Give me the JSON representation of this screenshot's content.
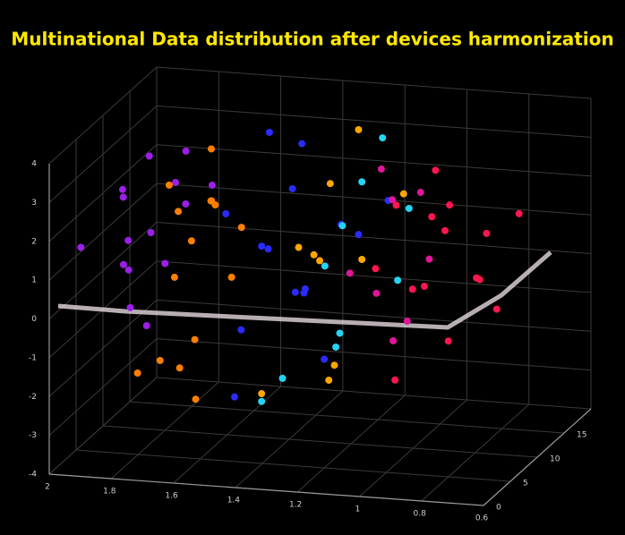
{
  "chart_data": {
    "type": "scatter3d",
    "title": "Multinational Data distribution after devices harmonization",
    "xlim": [
      2,
      0.6
    ],
    "ylim": [
      0,
      20
    ],
    "zlim": [
      -4,
      4
    ],
    "xticks": [
      2,
      1.8,
      1.6,
      1.4,
      1.2,
      1,
      0.8,
      0.6
    ],
    "yticks": [
      0,
      5,
      10,
      15
    ],
    "zticks": [
      -4,
      -3,
      -2,
      -1,
      0,
      1,
      2,
      3,
      4
    ],
    "grid": true,
    "series": [
      {
        "color": "#9b1fe8",
        "x": [
          1.95,
          1.9,
          1.88,
          1.85,
          1.82,
          1.8,
          1.78,
          1.92,
          1.86,
          1.75,
          1.83,
          1.9,
          1.7,
          1.79,
          1.87
        ],
        "y": [
          3,
          8,
          12,
          5,
          15,
          10,
          2,
          14,
          7,
          11,
          4,
          9,
          13,
          6,
          16
        ],
        "z": [
          1.5,
          2.2,
          0.8,
          2.8,
          1.2,
          0.3,
          1.9,
          2.5,
          -0.5,
          3.1,
          1.0,
          0.2,
          2.0,
          -0.8,
          1.6
        ]
      },
      {
        "color": "#ff7f00",
        "x": [
          1.75,
          1.7,
          1.65,
          1.6,
          1.72,
          1.68,
          1.62,
          1.58,
          1.74,
          1.66,
          1.7,
          1.64,
          1.6,
          1.77,
          1.69
        ],
        "y": [
          2,
          6,
          10,
          4,
          14,
          8,
          12,
          3,
          9,
          1,
          5,
          15,
          7,
          11,
          13
        ],
        "z": [
          -1.5,
          0.5,
          2.0,
          -0.8,
          2.8,
          1.2,
          -0.2,
          -2.2,
          1.8,
          -1.0,
          3.0,
          0.7,
          2.4,
          -2.5,
          1.5
        ]
      },
      {
        "color": "#2b2bff",
        "x": [
          1.5,
          1.45,
          1.4,
          1.35,
          1.3,
          1.55,
          1.25,
          1.2,
          1.48,
          1.38,
          1.15,
          1.42,
          1.32,
          1.28,
          1.52
        ],
        "y": [
          4,
          9,
          13,
          2,
          7,
          15,
          11,
          5,
          17,
          10,
          14,
          1,
          6,
          16,
          8
        ],
        "z": [
          2.5,
          1.0,
          -0.5,
          2.0,
          0.2,
          3.2,
          1.5,
          -1.2,
          2.7,
          -0.2,
          1.8,
          -1.8,
          3.0,
          0.6,
          -1.0
        ]
      },
      {
        "color": "#25d4f5",
        "x": [
          1.3,
          1.25,
          1.2,
          1.15,
          1.1,
          1.35,
          1.05,
          1.22,
          1.18,
          1.28
        ],
        "y": [
          3,
          8,
          12,
          5,
          15,
          2,
          10,
          17,
          6,
          13
        ],
        "z": [
          -1.5,
          0.8,
          2.5,
          -0.5,
          1.5,
          -2.0,
          0.3,
          3.0,
          -1.0,
          1.2
        ]
      },
      {
        "color": "#ffa600",
        "x": [
          1.35,
          1.3,
          1.25,
          1.2,
          1.15,
          1.1,
          1.28,
          1.22,
          1.32,
          1.18
        ],
        "y": [
          2,
          6,
          9,
          12,
          4,
          14,
          16,
          7,
          10,
          3
        ],
        "z": [
          -1.8,
          1.5,
          2.8,
          0.5,
          -1.2,
          2.0,
          3.3,
          -2.0,
          0.8,
          1.6
        ]
      },
      {
        "color": "#ff1650",
        "x": [
          1.0,
          0.95,
          0.9,
          0.85,
          0.8,
          0.98,
          0.92,
          0.88,
          0.82,
          0.78,
          1.02,
          0.9,
          0.86,
          0.94,
          0.8
        ],
        "y": [
          3,
          7,
          11,
          15,
          5,
          13,
          2,
          9,
          12,
          17,
          8,
          16,
          4,
          10,
          14
        ],
        "z": [
          1.5,
          0.5,
          2.2,
          1.0,
          -0.5,
          2.8,
          -1.2,
          1.8,
          0.2,
          1.3,
          2.5,
          -0.3,
          1.0,
          2.0,
          -0.8
        ]
      },
      {
        "color": "#e0159a",
        "x": [
          1.1,
          1.05,
          1.0,
          0.95,
          1.08,
          0.98,
          1.12,
          1.03
        ],
        "y": [
          4,
          9,
          13,
          6,
          16,
          2,
          11,
          8
        ],
        "z": [
          1.2,
          2.5,
          0.5,
          -0.2,
          1.8,
          1.0,
          3.0,
          -1.0
        ]
      }
    ]
  }
}
